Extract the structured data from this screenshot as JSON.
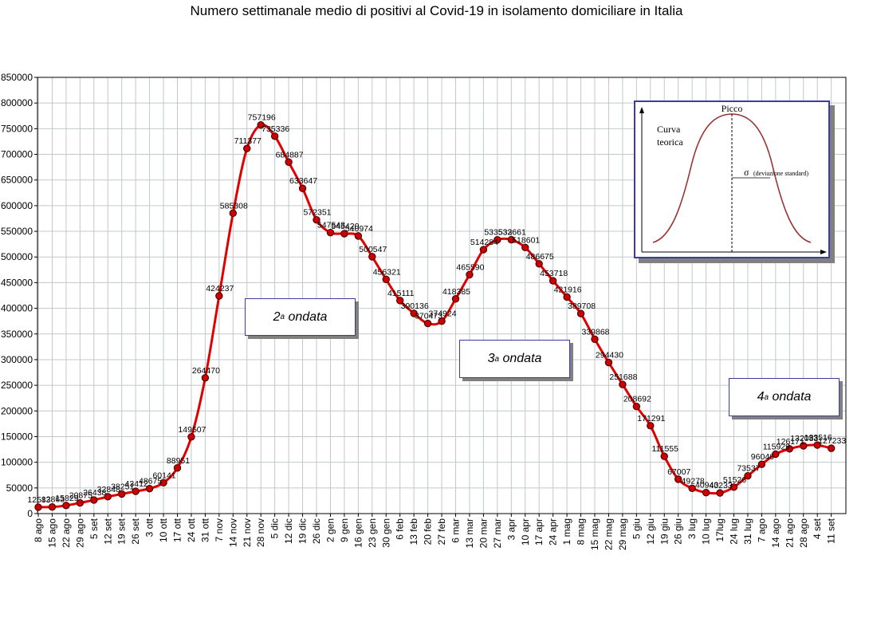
{
  "chart_data": {
    "type": "line",
    "title": "Numero settimanale medio di positivi al Covid-19  in isolamento domiciliare in Italia",
    "xlabel": "",
    "ylabel": "",
    "ylim": [
      0,
      850000
    ],
    "yticks": [
      0,
      50000,
      100000,
      150000,
      200000,
      250000,
      300000,
      350000,
      400000,
      450000,
      500000,
      550000,
      600000,
      650000,
      700000,
      750000,
      800000,
      850000
    ],
    "ytick_labels": [
      "0",
      "50000",
      "100000",
      "150000",
      "200000",
      "250000",
      "300000",
      "350000",
      "400000",
      "450000",
      "500000",
      "550000",
      "600000",
      "650000",
      "700000",
      "750000",
      "800000",
      "850000"
    ],
    "grid": true,
    "series_color": "#e00000",
    "marker_color": "#cc0000",
    "categories": [
      "8 ago",
      "15 ago",
      "22 ago",
      "29 ago",
      "5 set",
      "12 set",
      "19 set",
      "26 set",
      "3 ott",
      "10 ott",
      "17 ott",
      "24 ott",
      "31 ott",
      "7 nov",
      "14 nov",
      "21 nov",
      "28 nov",
      "5 dic",
      "12 dic",
      "19 dic",
      "26 dic",
      "2 gen",
      "9 gen",
      "16 gen",
      "23 gen",
      "30 gen",
      "6 feb",
      "13 feb",
      "20 feb",
      "27 feb",
      "6 mar",
      "13 mar",
      "20 mar",
      "27 mar",
      "3 apr",
      "10 apr",
      "17 apr",
      "24 apr",
      "1 mag",
      "8 mag",
      "15 mag",
      "22 mag",
      "29 mag",
      "5 giu",
      "12 giu",
      "19 giu",
      "26 giu",
      "3 lug",
      "10 lug",
      "17lug",
      "24 lug",
      "31 lug",
      "7 ago",
      "14 ago",
      "21 ago",
      "28 ago",
      "4 set",
      "11 set"
    ],
    "values": [
      12583,
      12863,
      15829,
      20875,
      26438,
      32848,
      38251,
      43412,
      48675,
      60141,
      88951,
      149507,
      264470,
      424237,
      585308,
      711377,
      757196,
      735336,
      684887,
      633647,
      572351,
      547543,
      545420,
      540974,
      500547,
      456321,
      415111,
      390136,
      370473,
      374924,
      418385,
      465590,
      514284,
      533532,
      533661,
      518601,
      486675,
      453718,
      421916,
      389708,
      339868,
      294430,
      251688,
      208692,
      171291,
      111555,
      67007,
      49278,
      40943,
      40233,
      51526,
      73537,
      96046,
      115929,
      126171,
      132083,
      133516,
      127233
    ],
    "data_labels": [
      "12583",
      "12863",
      "15829",
      "20875",
      "26438",
      "32848",
      "38251",
      "43412",
      "48675",
      "60141",
      "88951",
      "149507",
      "264470",
      "424237",
      "585308",
      "711377",
      "757196",
      "735336",
      "684887",
      "633647",
      "572351",
      "547543",
      "545420",
      "540974",
      "500547",
      "456321",
      "415111",
      "390136",
      "370473",
      "374924",
      "418385",
      "465590",
      "514284",
      "533532",
      "533661",
      "518601",
      "486675",
      "453718",
      "421916",
      "389708",
      "339868",
      "294430",
      "251688",
      "208692",
      "171291",
      "111555",
      "67007",
      "49278",
      "40943",
      "40233",
      "51526",
      "73537",
      "96046",
      "115929",
      "126171",
      "132083",
      "133516",
      "127233"
    ],
    "annotations": [
      {
        "ordinal": "2",
        "suffix": "a",
        "text": "ondata"
      },
      {
        "ordinal": "3",
        "suffix": "a",
        "text": "ondata"
      },
      {
        "ordinal": "4",
        "suffix": "a",
        "text": "ondata"
      }
    ],
    "inset": {
      "peak_label": "Picco",
      "curve_label_line1": "Curva",
      "curve_label_line2": "teorica",
      "sigma_label": "σ",
      "sigma_text": "(deviazione standard)"
    }
  }
}
